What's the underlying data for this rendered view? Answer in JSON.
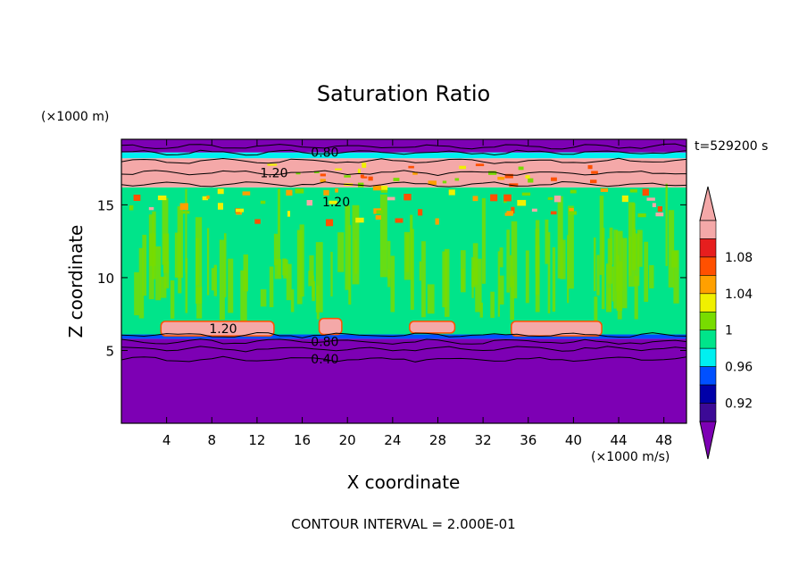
{
  "chart_data": {
    "type": "heatmap",
    "title": "Saturation Ratio",
    "xlabel": "X coordinate",
    "ylabel": "Z coordinate",
    "x_unit": "(×1000 m/s)",
    "y_unit": "(×1000 m)",
    "time_label": "t=529200 s",
    "footer": "CONTOUR INTERVAL = 2.000E-01",
    "xlim": [
      0,
      50
    ],
    "ylim": [
      0,
      19.5
    ],
    "x_ticks": [
      4,
      8,
      12,
      16,
      20,
      24,
      28,
      32,
      36,
      40,
      44,
      48
    ],
    "y_ticks": [
      5,
      10,
      15
    ],
    "contour_labels": [
      {
        "text": "0.80",
        "x": 18,
        "z": 18.6
      },
      {
        "text": "1.20",
        "x": 13.5,
        "z": 17.2
      },
      {
        "text": "1.20",
        "x": 19,
        "z": 15.2
      },
      {
        "text": "1.20",
        "x": 9,
        "z": 6.5
      },
      {
        "text": "0.80",
        "x": 18,
        "z": 5.6
      },
      {
        "text": "0.40",
        "x": 18,
        "z": 4.4
      }
    ],
    "colorbar": {
      "levels": [
        0.9,
        0.92,
        0.94,
        0.96,
        0.98,
        1.0,
        1.02,
        1.04,
        1.06,
        1.08,
        1.1
      ],
      "tick_labels": [
        "0.92",
        "0.96",
        "1",
        "1.04",
        "1.08"
      ],
      "colors": [
        "#3c0a96",
        "#0000a8",
        "#0050ff",
        "#00f0f0",
        "#00e48a",
        "#78dc00",
        "#f0f000",
        "#ffa000",
        "#ff5000",
        "#e61e1e",
        "#f4a8a8"
      ],
      "under_color": "#7d00b4",
      "over_color": "#f4a8a8"
    },
    "bands": [
      {
        "z0": 0,
        "z1": 5.8,
        "color": "#7d00b4"
      },
      {
        "z0": 5.8,
        "z1": 6.1,
        "color": "#0050ff"
      },
      {
        "z0": 6.1,
        "z1": 16.2,
        "color": "#00e48a"
      },
      {
        "z0": 16.2,
        "z1": 18.2,
        "color": "#f4a8a8"
      },
      {
        "z0": 18.2,
        "z1": 18.6,
        "color": "#00f0f0"
      },
      {
        "z0": 18.6,
        "z1": 19.5,
        "color": "#7d00b4"
      }
    ],
    "supersaturated_blobs": [
      {
        "x0": 3.5,
        "x1": 13.5,
        "z0": 6.0,
        "z1": 7.0,
        "color": "#f4a8a8"
      },
      {
        "x0": 34.5,
        "x1": 42.5,
        "z0": 6.0,
        "z1": 7.0,
        "color": "#f4a8a8"
      },
      {
        "x0": 17.5,
        "x1": 19.5,
        "z0": 6.1,
        "z1": 7.2,
        "color": "#f4a8a8"
      },
      {
        "x0": 25.5,
        "x1": 29.5,
        "z0": 6.2,
        "z1": 7.0,
        "color": "#f4a8a8"
      }
    ]
  }
}
